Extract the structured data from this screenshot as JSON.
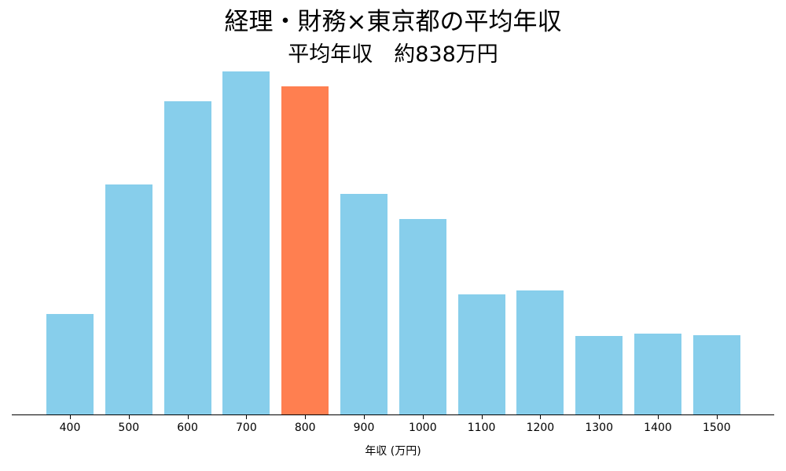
{
  "chart_data": {
    "type": "bar",
    "title": "経理・財務×東京都の平均年収",
    "subtitle": "平均年収　約838万円",
    "xlabel": "年収 (万円)",
    "ylabel": "",
    "categories": [
      "400",
      "500",
      "600",
      "700",
      "800",
      "900",
      "1000",
      "1100",
      "1200",
      "1300",
      "1400",
      "1500"
    ],
    "values": [
      128,
      293,
      399,
      437,
      418,
      281,
      249,
      153,
      158,
      100,
      103,
      101
    ],
    "value_note": "relative bar heights (no y-axis shown)",
    "highlight_category": "800",
    "colors": {
      "default": "#87CEEB",
      "highlight": "#FF7F50"
    },
    "grid": false,
    "legend": null
  }
}
